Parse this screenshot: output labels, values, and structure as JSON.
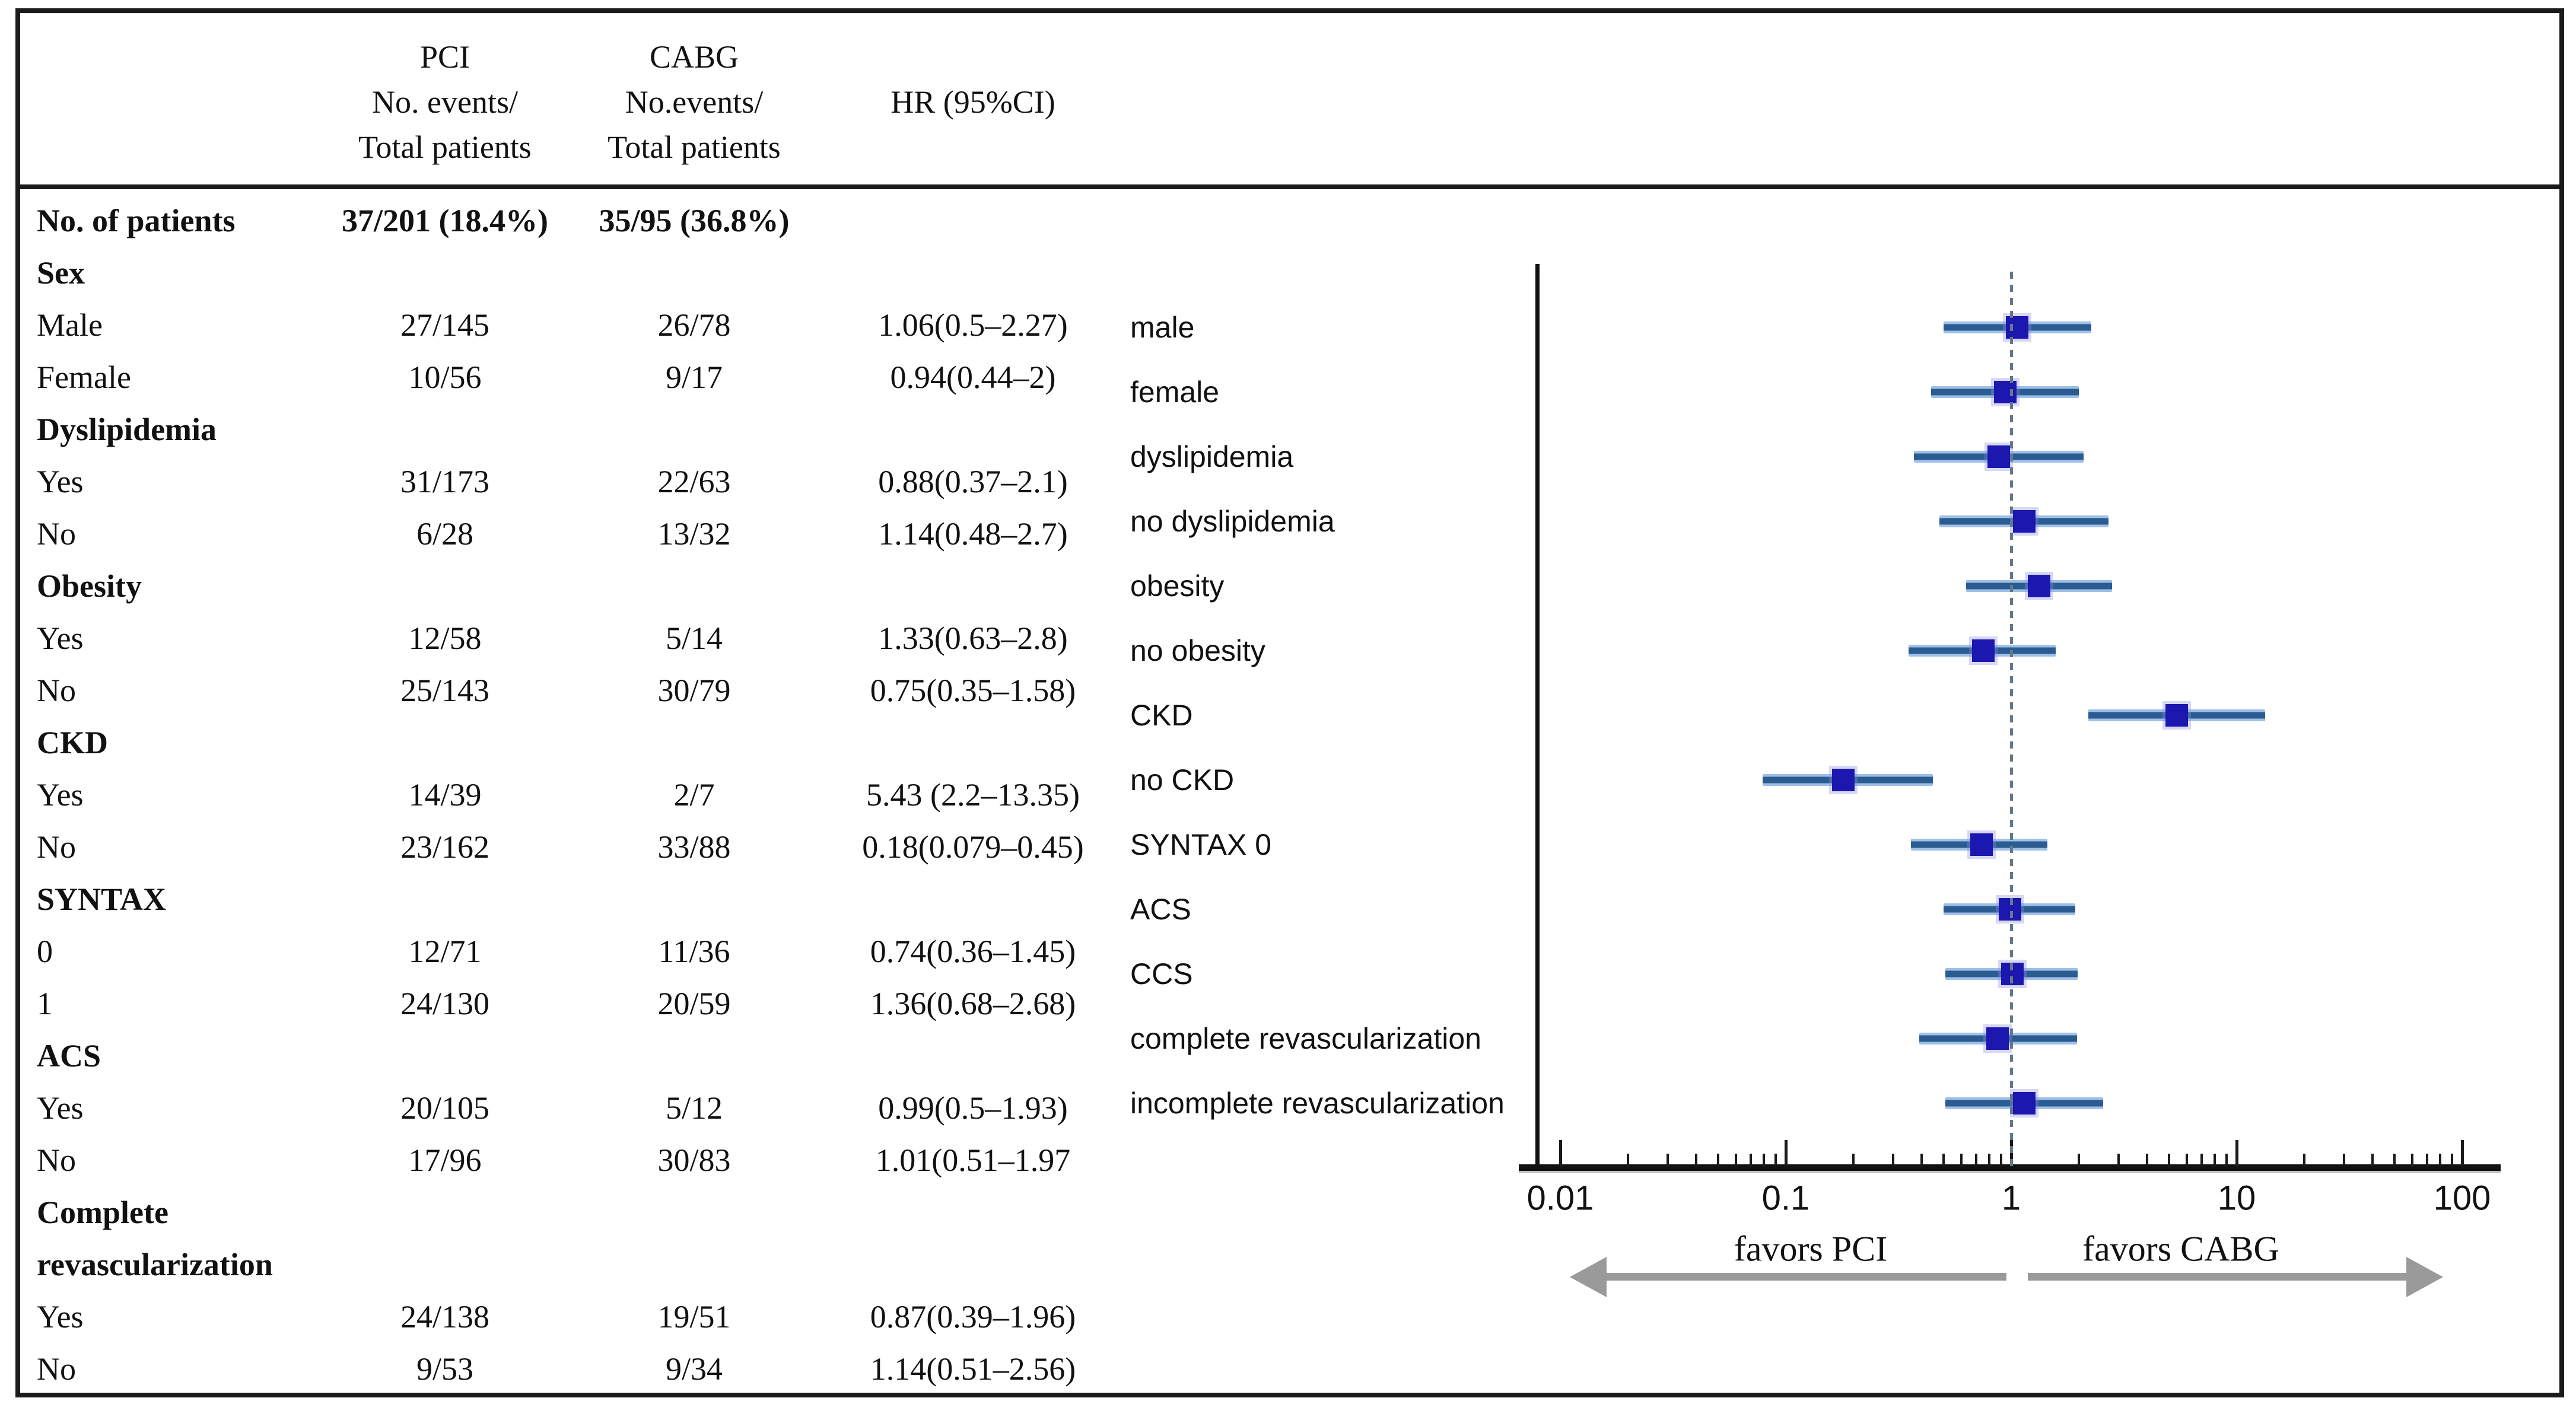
{
  "table": {
    "header": {
      "pci_lines": [
        "PCI",
        "No. events/",
        "Total patients"
      ],
      "cabg_lines": [
        "CABG",
        "No.events/",
        "Total patients"
      ],
      "hr": "HR (95%CI)"
    },
    "rows": [
      {
        "label": "No. of patients",
        "pci": "37/201 (18.4%)",
        "cabg": "35/95 (36.8%)",
        "hr": "",
        "bold": true
      },
      {
        "label": "Sex",
        "bold": true
      },
      {
        "label": "Male",
        "pci": "27/145",
        "cabg": "26/78",
        "hr": "1.06(0.5–2.27)"
      },
      {
        "label": "Female",
        "pci": "10/56",
        "cabg": "9/17",
        "hr": "0.94(0.44–2)"
      },
      {
        "label": "Dyslipidemia",
        "bold": true
      },
      {
        "label": "Yes",
        "pci": "31/173",
        "cabg": "22/63",
        "hr": "0.88(0.37–2.1)"
      },
      {
        "label": "No",
        "pci": "6/28",
        "cabg": "13/32",
        "hr": "1.14(0.48–2.7)"
      },
      {
        "label": "Obesity",
        "bold": true
      },
      {
        "label": "Yes",
        "pci": "12/58",
        "cabg": "5/14",
        "hr": "1.33(0.63–2.8)"
      },
      {
        "label": "No",
        "pci": "25/143",
        "cabg": "30/79",
        "hr": "0.75(0.35–1.58)"
      },
      {
        "label": "CKD",
        "bold": true
      },
      {
        "label": "Yes",
        "pci": "14/39",
        "cabg": "2/7",
        "hr": "5.43 (2.2–13.35)"
      },
      {
        "label": "No",
        "pci": "23/162",
        "cabg": "33/88",
        "hr": "0.18(0.079–0.45)"
      },
      {
        "label": "SYNTAX",
        "bold": true
      },
      {
        "label": "0",
        "pci": "12/71",
        "cabg": "11/36",
        "hr": "0.74(0.36–1.45)"
      },
      {
        "label": "1",
        "pci": "24/130",
        "cabg": "20/59",
        "hr": "1.36(0.68–2.68)"
      },
      {
        "label": "ACS",
        "bold": true
      },
      {
        "label": "Yes",
        "pci": "20/105",
        "cabg": "5/12",
        "hr": "0.99(0.5–1.93)"
      },
      {
        "label": "No",
        "pci": "17/96",
        "cabg": "30/83",
        "hr": "1.01(0.51–1.97"
      },
      {
        "label": "Complete",
        "bold": true
      },
      {
        "label": "revascularization",
        "bold": true
      },
      {
        "label": "Yes",
        "pci": "24/138",
        "cabg": "19/51",
        "hr": "0.87(0.39–1.96)"
      },
      {
        "label": "No",
        "pci": "9/53",
        "cabg": "9/34",
        "hr": "1.14(0.51–2.56)"
      }
    ]
  },
  "chart_data": {
    "type": "forest",
    "x_scale": "log",
    "x_range": [
      0.01,
      100
    ],
    "x_ticks": [
      0.01,
      0.1,
      1,
      10,
      100
    ],
    "x_tick_labels": [
      "0.01",
      "0.1",
      "1",
      "10",
      "100"
    ],
    "reference_line": 1,
    "rows": [
      {
        "label": "male",
        "hr": 1.06,
        "lo": 0.5,
        "hi": 2.27
      },
      {
        "label": "female",
        "hr": 0.94,
        "lo": 0.44,
        "hi": 2
      },
      {
        "label": "dyslipidemia",
        "hr": 0.88,
        "lo": 0.37,
        "hi": 2.1
      },
      {
        "label": "no dyslipidemia",
        "hr": 1.14,
        "lo": 0.48,
        "hi": 2.7
      },
      {
        "label": "obesity",
        "hr": 1.33,
        "lo": 0.63,
        "hi": 2.8
      },
      {
        "label": "no obesity",
        "hr": 0.75,
        "lo": 0.35,
        "hi": 1.58
      },
      {
        "label": "CKD",
        "hr": 5.43,
        "lo": 2.2,
        "hi": 13.35
      },
      {
        "label": "no CKD",
        "hr": 0.18,
        "lo": 0.079,
        "hi": 0.45
      },
      {
        "label": "SYNTAX 0",
        "hr": 0.74,
        "lo": 0.36,
        "hi": 1.45
      },
      {
        "label": "ACS",
        "hr": 0.99,
        "lo": 0.5,
        "hi": 1.93
      },
      {
        "label": "CCS",
        "hr": 1.01,
        "lo": 0.51,
        "hi": 1.97
      },
      {
        "label": "complete revascularization",
        "hr": 0.87,
        "lo": 0.39,
        "hi": 1.96
      },
      {
        "label": "incomplete revascularization",
        "hr": 1.14,
        "lo": 0.51,
        "hi": 2.56
      }
    ],
    "annotations": {
      "left_arrow": "favors PCI",
      "right_arrow": "favors CABG"
    }
  },
  "colors": {
    "marker": "#1c17ae",
    "ci_core": "#2b5c91",
    "ci_edge": "#9fc0e8",
    "reference": "#64788c",
    "arrow": "#9a9a9a",
    "ink": "#111111"
  }
}
